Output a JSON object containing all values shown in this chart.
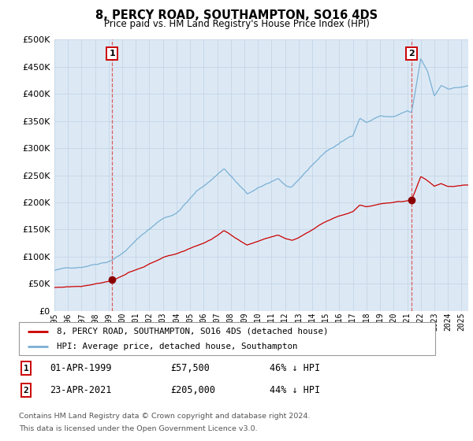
{
  "title": "8, PERCY ROAD, SOUTHAMPTON, SO16 4DS",
  "subtitle": "Price paid vs. HM Land Registry's House Price Index (HPI)",
  "background_color": "#ffffff",
  "plot_bg_color": "#dce9f5",
  "grid_color": "#c8d8e8",
  "hpi_color": "#7ab0d4",
  "price_color": "#cc0000",
  "marker_color": "#8b0000",
  "vline_color": "#dd4444",
  "annotation1_year": 1999.25,
  "annotation1_price": 57500,
  "annotation2_year": 2021.31,
  "annotation2_price": 205000,
  "legend_label1": "8, PERCY ROAD, SOUTHAMPTON, SO16 4DS (detached house)",
  "legend_label2": "HPI: Average price, detached house, Southampton",
  "footnote1": "Contains HM Land Registry data © Crown copyright and database right 2024.",
  "footnote2": "This data is licensed under the Open Government Licence v3.0.",
  "table_rows": [
    [
      "1",
      "01-APR-1999",
      "£57,500",
      "46% ↓ HPI"
    ],
    [
      "2",
      "23-APR-2021",
      "£205,000",
      "44% ↓ HPI"
    ]
  ],
  "ylim": [
    0,
    500000
  ],
  "xlim_start": 1995.0,
  "xlim_end": 2025.5
}
